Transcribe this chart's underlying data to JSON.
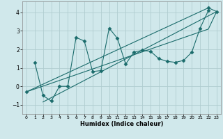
{
  "xlabel": "Humidex (Indice chaleur)",
  "background_color": "#d0e8eb",
  "grid_color": "#b0cdd0",
  "line_color": "#1a6b6b",
  "xlim": [
    -0.5,
    23.5
  ],
  "ylim": [
    -1.5,
    4.6
  ],
  "xticks": [
    0,
    1,
    2,
    3,
    4,
    5,
    6,
    7,
    8,
    9,
    10,
    11,
    12,
    13,
    14,
    15,
    16,
    17,
    18,
    19,
    20,
    21,
    22,
    23
  ],
  "yticks": [
    -1,
    0,
    1,
    2,
    3,
    4
  ],
  "lines": [
    {
      "x": [
        1,
        2,
        3,
        4,
        5,
        6,
        7,
        8,
        9,
        10,
        11,
        12,
        13,
        14,
        15,
        16,
        17,
        18,
        19,
        20,
        21,
        22
      ],
      "y": [
        1.3,
        -0.5,
        -0.8,
        0.0,
        0.0,
        2.65,
        2.45,
        0.8,
        0.85,
        3.15,
        2.6,
        1.2,
        1.85,
        1.95,
        1.9,
        1.5,
        1.35,
        1.3,
        1.4,
        1.85,
        3.15,
        4.1
      ],
      "marker": "D",
      "markersize": 2.5
    },
    {
      "x": [
        0,
        22,
        23
      ],
      "y": [
        -0.3,
        4.25,
        4.05
      ],
      "marker": "D",
      "markersize": 2.5
    },
    {
      "x": [
        0,
        22,
        23
      ],
      "y": [
        -0.3,
        3.1,
        4.05
      ],
      "marker": null,
      "markersize": 0
    },
    {
      "x": [
        2,
        23
      ],
      "y": [
        -0.85,
        4.05
      ],
      "marker": null,
      "markersize": 0
    }
  ]
}
